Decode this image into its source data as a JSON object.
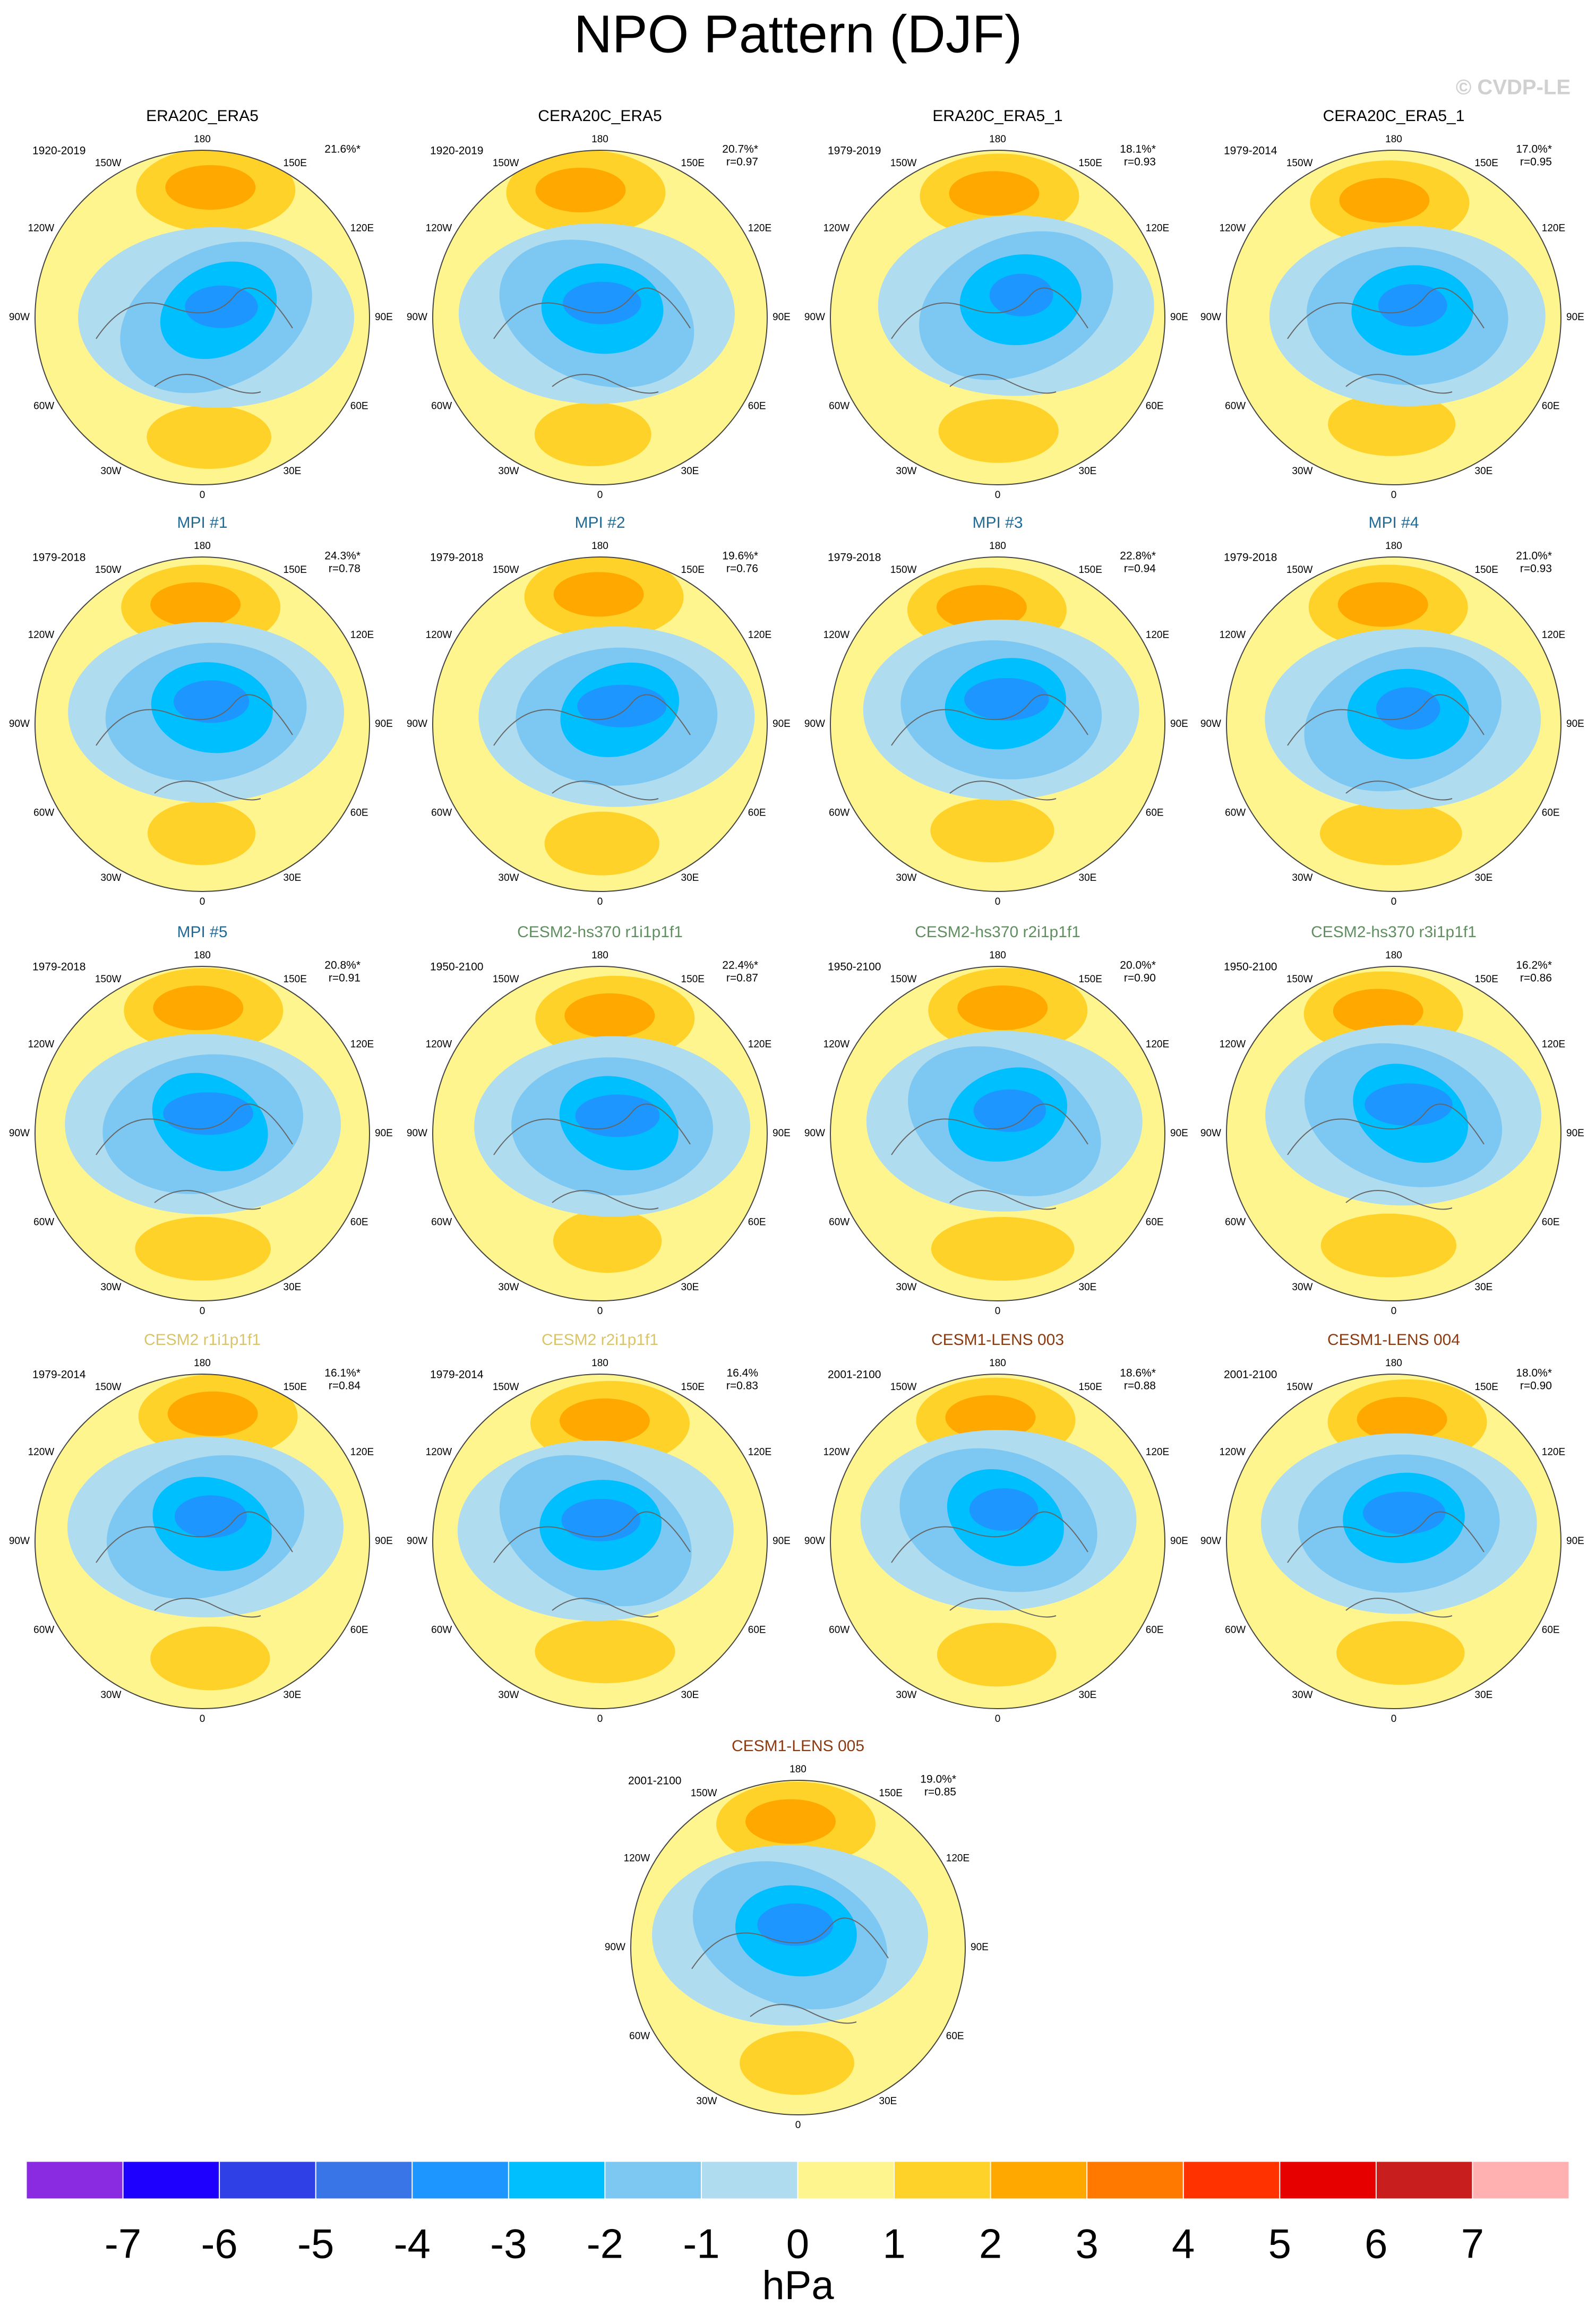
{
  "title": "NPO Pattern (DJF)",
  "copyright": "© CVDP-LE",
  "longitude_labels": [
    "180",
    "150E",
    "120E",
    "90E",
    "60E",
    "30E",
    "0",
    "30W",
    "60W",
    "90W",
    "120W",
    "150W"
  ],
  "panels": [
    {
      "title": "ERA20C_ERA5",
      "title_color": "#000000",
      "period": "1920-2019",
      "variance": "21.6%*"
    },
    {
      "title": "CERA20C_ERA5",
      "title_color": "#000000",
      "period": "1920-2019",
      "variance": "20.7%*",
      "correlation": "r=0.97"
    },
    {
      "title": "ERA20C_ERA5_1",
      "title_color": "#000000",
      "period": "1979-2019",
      "variance": "18.1%*",
      "correlation": "r=0.93"
    },
    {
      "title": "CERA20C_ERA5_1",
      "title_color": "#000000",
      "period": "1979-2014",
      "variance": "17.0%*",
      "correlation": "r=0.95"
    },
    {
      "title": "MPI #1",
      "title_color": "#1f6b96",
      "period": "1979-2018",
      "variance": "24.3%*",
      "correlation": "r=0.78"
    },
    {
      "title": "MPI #2",
      "title_color": "#1f6b96",
      "period": "1979-2018",
      "variance": "19.6%*",
      "correlation": "r=0.76"
    },
    {
      "title": "MPI #3",
      "title_color": "#1f6b96",
      "period": "1979-2018",
      "variance": "22.8%*",
      "correlation": "r=0.94"
    },
    {
      "title": "MPI #4",
      "title_color": "#1f6b96",
      "period": "1979-2018",
      "variance": "21.0%*",
      "correlation": "r=0.93"
    },
    {
      "title": "MPI #5",
      "title_color": "#1f6b96",
      "period": "1979-2018",
      "variance": "20.8%*",
      "correlation": "r=0.91"
    },
    {
      "title": "CESM2-hs370 r1i1p1f1",
      "title_color": "#5f8f5f",
      "period": "1950-2100",
      "variance": "22.4%*",
      "correlation": "r=0.87"
    },
    {
      "title": "CESM2-hs370 r2i1p1f1",
      "title_color": "#5f8f5f",
      "period": "1950-2100",
      "variance": "20.0%*",
      "correlation": "r=0.90"
    },
    {
      "title": "CESM2-hs370 r3i1p1f1",
      "title_color": "#5f8f5f",
      "period": "1950-2100",
      "variance": "16.2%*",
      "correlation": "r=0.86"
    },
    {
      "title": "CESM2 r1i1p1f1",
      "title_color": "#d9c468",
      "period": "1979-2014",
      "variance": "16.1%*",
      "correlation": "r=0.84"
    },
    {
      "title": "CESM2 r2i1p1f1",
      "title_color": "#d9c468",
      "period": "1979-2014",
      "variance": "16.4%",
      "correlation": "r=0.83"
    },
    {
      "title": "CESM1-LENS 003",
      "title_color": "#8b3a10",
      "period": "2001-2100",
      "variance": "18.6%*",
      "correlation": "r=0.88"
    },
    {
      "title": "CESM1-LENS 004",
      "title_color": "#8b3a10",
      "period": "2001-2100",
      "variance": "18.0%*",
      "correlation": "r=0.90"
    },
    {
      "title": "CESM1-LENS 005",
      "title_color": "#8b3a10",
      "period": "2001-2100",
      "variance": "19.0%*",
      "correlation": "r=0.85"
    }
  ],
  "colorbar": {
    "levels": [
      -7,
      -6,
      -5,
      -4,
      -3,
      -2,
      -1,
      0,
      1,
      2,
      3,
      4,
      5,
      6,
      7
    ],
    "colors": [
      "#8a2be2",
      "#1e00ff",
      "#2e40e6",
      "#3a75e8",
      "#1e96ff",
      "#00bfff",
      "#7dc8f3",
      "#b0dcf0",
      "#fff58f",
      "#ffd22a",
      "#ffa800",
      "#ff7800",
      "#ff3200",
      "#e60000",
      "#c81e1e",
      "#ffb0b0"
    ],
    "unit": "hPa"
  }
}
